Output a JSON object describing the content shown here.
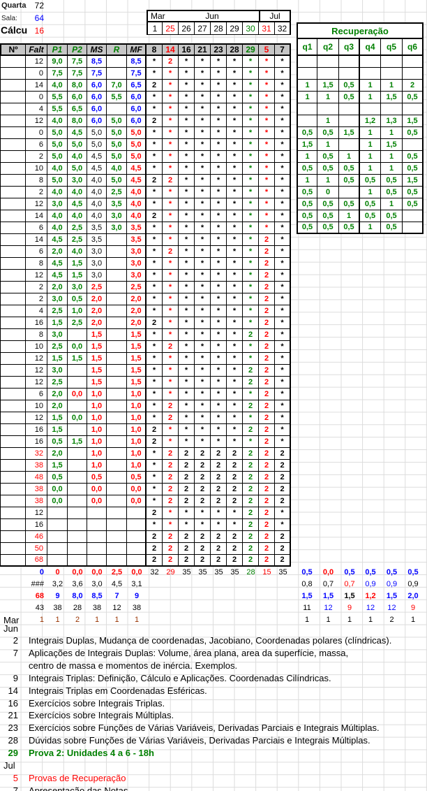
{
  "topbar": {
    "day_label": "Quarta",
    "day_value": "72",
    "room_label": "Sala:",
    "room_value": "64",
    "course_label": "Cálcu",
    "course_value": "16"
  },
  "calendar": {
    "months": [
      "Mar",
      "Jun",
      "Jul"
    ],
    "weeks": [
      "1",
      "25",
      "26",
      "27",
      "28",
      "29",
      "30",
      "31",
      "32"
    ],
    "week_colors": [
      "k",
      "r",
      "k",
      "k",
      "k",
      "k",
      "g",
      "r",
      "k"
    ]
  },
  "header": {
    "left": [
      "Nº",
      "Falt",
      "P1",
      "P2",
      "MS",
      "R",
      "MF"
    ],
    "left_colors": [
      "k",
      "k",
      "g",
      "g",
      "k",
      "g",
      "k"
    ],
    "dates": [
      "8",
      "14",
      "16",
      "21",
      "23",
      "28",
      "29",
      "5",
      "7"
    ],
    "date_colors": [
      "k",
      "r",
      "k",
      "k",
      "k",
      "k",
      "g",
      "r",
      "k"
    ]
  },
  "recup": {
    "title": "Recuperação",
    "cols": [
      "q1",
      "q2",
      "q3",
      "q4",
      "q5",
      "q6"
    ]
  },
  "rows": [
    {
      "g": [
        "12",
        "9,0",
        "7,5",
        "8,5",
        "",
        "8,5"
      ],
      "gc": [
        "k",
        "g",
        "g",
        "b",
        "g",
        "b"
      ],
      "d": "*2*******",
      "q": [
        "",
        "",
        "",
        "",
        "",
        ""
      ]
    },
    {
      "g": [
        "0",
        "7,5",
        "7,5",
        "7,5",
        "",
        "7,5"
      ],
      "gc": [
        "k",
        "g",
        "g",
        "b",
        "g",
        "b"
      ],
      "d": "*********",
      "q": [
        "",
        "",
        "",
        "",
        "",
        ""
      ]
    },
    {
      "g": [
        "14",
        "4,0",
        "8,0",
        "6,0",
        "7,0",
        "6,5"
      ],
      "gc": [
        "k",
        "g",
        "g",
        "b",
        "g",
        "b"
      ],
      "d": "2********",
      "q": [
        "1",
        "1,5",
        "0,5",
        "1",
        "1",
        "2"
      ]
    },
    {
      "g": [
        "0",
        "5,5",
        "6,0",
        "6,0",
        "5,5",
        "6,0"
      ],
      "gc": [
        "k",
        "g",
        "g",
        "b",
        "g",
        "b"
      ],
      "d": "*********",
      "q": [
        "1",
        "1",
        "0,5",
        "1",
        "1,5",
        "0,5"
      ]
    },
    {
      "g": [
        "4",
        "5,5",
        "6,5",
        "6,0",
        "",
        "6,0"
      ],
      "gc": [
        "k",
        "g",
        "g",
        "b",
        "g",
        "b"
      ],
      "d": "*********",
      "q": [
        "",
        "",
        "",
        "",
        "",
        ""
      ]
    },
    {
      "g": [
        "12",
        "4,0",
        "8,0",
        "6,0",
        "5,0",
        "6,0"
      ],
      "gc": [
        "k",
        "g",
        "g",
        "b",
        "g",
        "b"
      ],
      "d": "2********",
      "q": [
        "",
        "1",
        "",
        "1,2",
        "1,3",
        "1,5"
      ]
    },
    {
      "g": [
        "0",
        "5,0",
        "4,5",
        "5,0",
        "5,0",
        "5,0"
      ],
      "gc": [
        "k",
        "g",
        "g",
        "k",
        "g",
        "r"
      ],
      "d": "*********",
      "q": [
        "0,5",
        "0,5",
        "1,5",
        "1",
        "1",
        "0,5"
      ]
    },
    {
      "g": [
        "6",
        "5,0",
        "5,0",
        "5,0",
        "5,0",
        "5,0"
      ],
      "gc": [
        "k",
        "g",
        "g",
        "k",
        "g",
        "r"
      ],
      "d": "*********",
      "q": [
        "1,5",
        "1",
        "",
        "1",
        "1,5",
        ""
      ]
    },
    {
      "g": [
        "2",
        "5,0",
        "4,0",
        "4,5",
        "5,0",
        "5,0"
      ],
      "gc": [
        "k",
        "g",
        "g",
        "k",
        "g",
        "r"
      ],
      "d": "*********",
      "q": [
        "1",
        "0,5",
        "1",
        "1",
        "1",
        "0,5"
      ]
    },
    {
      "g": [
        "10",
        "4,0",
        "5,0",
        "4,5",
        "4,0",
        "4,5"
      ],
      "gc": [
        "k",
        "g",
        "g",
        "k",
        "g",
        "r"
      ],
      "d": "*********",
      "q": [
        "0,5",
        "0,5",
        "0,5",
        "1",
        "1",
        "0,5"
      ]
    },
    {
      "g": [
        "8",
        "5,0",
        "3,0",
        "4,0",
        "5,0",
        "4,5"
      ],
      "gc": [
        "k",
        "g",
        "g",
        "k",
        "g",
        "r"
      ],
      "d": "22*******",
      "q": [
        "1",
        "1",
        "0,5",
        "0,5",
        "0,5",
        "1,5"
      ]
    },
    {
      "g": [
        "2",
        "4,0",
        "4,0",
        "4,0",
        "2,5",
        "4,0"
      ],
      "gc": [
        "k",
        "g",
        "g",
        "k",
        "g",
        "r"
      ],
      "d": "*********",
      "q": [
        "0,5",
        "0",
        "",
        "1",
        "0,5",
        "0,5"
      ]
    },
    {
      "g": [
        "12",
        "3,0",
        "4,5",
        "4,0",
        "3,5",
        "4,0"
      ],
      "gc": [
        "k",
        "g",
        "g",
        "k",
        "g",
        "r"
      ],
      "d": "*********",
      "q": [
        "0,5",
        "0,5",
        "0,5",
        "0,5",
        "1",
        "0,5"
      ]
    },
    {
      "g": [
        "14",
        "4,0",
        "4,0",
        "4,0",
        "3,0",
        "4,0"
      ],
      "gc": [
        "k",
        "g",
        "g",
        "k",
        "g",
        "r"
      ],
      "d": "2********",
      "q": [
        "0,5",
        "0,5",
        "1",
        "0,5",
        "0,5",
        ""
      ]
    },
    {
      "g": [
        "6",
        "4,0",
        "2,5",
        "3,5",
        "3,0",
        "3,5"
      ],
      "gc": [
        "k",
        "g",
        "g",
        "k",
        "g",
        "r"
      ],
      "d": "*********",
      "q": [
        "0,5",
        "0,5",
        "0,5",
        "1",
        "0,5",
        ""
      ]
    },
    {
      "g": [
        "14",
        "4,5",
        "2,5",
        "3,5",
        "",
        "3,5"
      ],
      "gc": [
        "k",
        "g",
        "g",
        "k",
        "g",
        "r"
      ],
      "d": "*******2*"
    },
    {
      "g": [
        "6",
        "2,0",
        "4,0",
        "3,0",
        "",
        "3,0"
      ],
      "gc": [
        "k",
        "g",
        "g",
        "k",
        "g",
        "r"
      ],
      "d": "*2*****2*"
    },
    {
      "g": [
        "8",
        "4,5",
        "1,5",
        "3,0",
        "",
        "3,0"
      ],
      "gc": [
        "k",
        "g",
        "g",
        "k",
        "g",
        "r"
      ],
      "d": "*******2*"
    },
    {
      "g": [
        "12",
        "4,5",
        "1,5",
        "3,0",
        "",
        "3,0"
      ],
      "gc": [
        "k",
        "g",
        "g",
        "k",
        "g",
        "r"
      ],
      "d": "*******2*"
    },
    {
      "g": [
        "2",
        "2,0",
        "3,0",
        "2,5",
        "",
        "2,5"
      ],
      "gc": [
        "k",
        "g",
        "g",
        "r",
        "g",
        "r"
      ],
      "d": "*******2*"
    },
    {
      "g": [
        "2",
        "3,0",
        "0,5",
        "2,0",
        "",
        "2,0"
      ],
      "gc": [
        "k",
        "g",
        "g",
        "r",
        "g",
        "r"
      ],
      "d": "*******2*"
    },
    {
      "g": [
        "4",
        "2,5",
        "1,0",
        "2,0",
        "",
        "2,0"
      ],
      "gc": [
        "k",
        "g",
        "g",
        "r",
        "g",
        "r"
      ],
      "d": "*******2*"
    },
    {
      "g": [
        "16",
        "1,5",
        "2,5",
        "2,0",
        "",
        "2,0"
      ],
      "gc": [
        "k",
        "g",
        "g",
        "r",
        "g",
        "r"
      ],
      "d": "2******2*"
    },
    {
      "g": [
        "8",
        "3,0",
        "",
        "1,5",
        "",
        "1,5"
      ],
      "gc": [
        "k",
        "g",
        "g",
        "r",
        "g",
        "r"
      ],
      "d": "******22*"
    },
    {
      "g": [
        "10",
        "2,5",
        "0,0",
        "1,5",
        "",
        "1,5"
      ],
      "gc": [
        "k",
        "g",
        "g",
        "r",
        "g",
        "r"
      ],
      "d": "*2*****2*"
    },
    {
      "g": [
        "12",
        "1,5",
        "1,5",
        "1,5",
        "",
        "1,5"
      ],
      "gc": [
        "k",
        "g",
        "g",
        "r",
        "g",
        "r"
      ],
      "d": "*******2*"
    },
    {
      "g": [
        "12",
        "3,0",
        "",
        "1,5",
        "",
        "1,5"
      ],
      "gc": [
        "k",
        "g",
        "g",
        "r",
        "g",
        "r"
      ],
      "d": "******22*"
    },
    {
      "g": [
        "12",
        "2,5",
        "",
        "1,5",
        "",
        "1,5"
      ],
      "gc": [
        "k",
        "g",
        "g",
        "r",
        "g",
        "r"
      ],
      "d": "******22*"
    },
    {
      "g": [
        "6",
        "2,0",
        "0,0",
        "1,0",
        "",
        "1,0"
      ],
      "gc": [
        "k",
        "g",
        "r",
        "r",
        "g",
        "r"
      ],
      "d": "*******2*"
    },
    {
      "g": [
        "10",
        "2,0",
        "",
        "1,0",
        "",
        "1,0"
      ],
      "gc": [
        "k",
        "g",
        "g",
        "r",
        "g",
        "r"
      ],
      "d": "*2****22*"
    },
    {
      "g": [
        "12",
        "1,5",
        "0,0",
        "1,0",
        "",
        "1,0"
      ],
      "gc": [
        "k",
        "g",
        "g",
        "r",
        "g",
        "r"
      ],
      "d": "*2*****2*"
    },
    {
      "g": [
        "16",
        "1,5",
        "",
        "1,0",
        "",
        "1,0"
      ],
      "gc": [
        "k",
        "g",
        "g",
        "r",
        "g",
        "r"
      ],
      "d": "2*****22*"
    },
    {
      "g": [
        "16",
        "0,5",
        "1,5",
        "1,0",
        "",
        "1,0"
      ],
      "gc": [
        "k",
        "g",
        "g",
        "r",
        "g",
        "r"
      ],
      "d": "2******2*"
    },
    {
      "g": [
        "32",
        "2,0",
        "",
        "1,0",
        "",
        "1,0"
      ],
      "gc": [
        "r",
        "g",
        "g",
        "r",
        "g",
        "r"
      ],
      "d": "*22222222"
    },
    {
      "g": [
        "38",
        "1,5",
        "",
        "1,0",
        "",
        "1,0"
      ],
      "gc": [
        "r",
        "g",
        "g",
        "r",
        "g",
        "r"
      ],
      "d": "*22222222"
    },
    {
      "g": [
        "48",
        "0,5",
        "",
        "0,5",
        "",
        "0,5"
      ],
      "gc": [
        "r",
        "g",
        "g",
        "r",
        "g",
        "r"
      ],
      "d": "*22222222"
    },
    {
      "g": [
        "38",
        "0,0",
        "",
        "0,0",
        "",
        "0,0"
      ],
      "gc": [
        "r",
        "g",
        "g",
        "r",
        "g",
        "r"
      ],
      "d": "*22222222"
    },
    {
      "g": [
        "38",
        "0,0",
        "",
        "0,0",
        "",
        "0,0"
      ],
      "gc": [
        "r",
        "g",
        "g",
        "r",
        "g",
        "r"
      ],
      "d": "*22222222"
    },
    {
      "g": [
        "12",
        "",
        "",
        "",
        "",
        ""
      ],
      "gc": [
        "k",
        "g",
        "g",
        "r",
        "g",
        "r"
      ],
      "d": "2*****22*"
    },
    {
      "g": [
        "16",
        "",
        "",
        "",
        "",
        ""
      ],
      "gc": [
        "k",
        "g",
        "g",
        "r",
        "g",
        "r"
      ],
      "d": "******22*"
    },
    {
      "g": [
        "46",
        "",
        "",
        "",
        "",
        ""
      ],
      "gc": [
        "r",
        "g",
        "g",
        "r",
        "g",
        "r"
      ],
      "d": "222222222"
    },
    {
      "g": [
        "50",
        "",
        "",
        "",
        "",
        ""
      ],
      "gc": [
        "r",
        "g",
        "g",
        "r",
        "g",
        "r"
      ],
      "d": "222222222"
    },
    {
      "g": [
        "68",
        "",
        "",
        "",
        "",
        ""
      ],
      "gc": [
        "r",
        "g",
        "g",
        "r",
        "g",
        "r"
      ],
      "d": "222222222"
    }
  ],
  "summary": [
    {
      "label": "",
      "left": [
        "0",
        "0",
        "0,0",
        "0,0",
        "2,5",
        "0,0"
      ],
      "lc": [
        "b",
        "r",
        "r",
        "r",
        "r",
        "r"
      ],
      "dates": [
        "32",
        "29",
        "35",
        "35",
        "35",
        "35",
        "28",
        "15",
        "35"
      ],
      "q": [
        "0,5",
        "0,0",
        "0,5",
        "0,5",
        "0,5",
        "0,5"
      ],
      "qc": [
        "b",
        "r",
        "b",
        "b",
        "b",
        "b"
      ],
      "bold": true
    },
    {
      "label": "",
      "left": [
        "###",
        "3,2",
        "3,6",
        "3,0",
        "4,5",
        "3,1"
      ],
      "lc": [
        "k",
        "k",
        "k",
        "k",
        "k",
        "k"
      ],
      "dates": [],
      "q": [
        "0,8",
        "0,7",
        "0,7",
        "0,9",
        "0,9",
        "0,9"
      ],
      "qc": [
        "k",
        "k",
        "r",
        "b",
        "b",
        "k"
      ],
      "bold": false
    },
    {
      "label": "",
      "left": [
        "68",
        "9",
        "8,0",
        "8,5",
        "7",
        "9"
      ],
      "lc": [
        "r",
        "b",
        "b",
        "b",
        "b",
        "b"
      ],
      "dates": [],
      "q": [
        "1,5",
        "1,5",
        "1,5",
        "1,2",
        "1,5",
        "2,0"
      ],
      "qc": [
        "b",
        "b",
        "k",
        "r",
        "b",
        "b"
      ],
      "bold": true
    },
    {
      "label": "",
      "left": [
        "43",
        "38",
        "28",
        "38",
        "12",
        "38"
      ],
      "lc": [
        "k",
        "k",
        "k",
        "k",
        "k",
        "k"
      ],
      "dates": [],
      "q": [
        "11",
        "12",
        "9",
        "12",
        "12",
        "9"
      ],
      "qc": [
        "k",
        "b",
        "r",
        "b",
        "b",
        "r"
      ],
      "bold": false
    },
    {
      "label": "Mar",
      "left": [
        "1",
        "1",
        "2",
        "1",
        "1",
        "1"
      ],
      "lc": [
        "x",
        "x",
        "x",
        "x",
        "x",
        "x"
      ],
      "dates": [],
      "q": [
        "1",
        "1",
        "1",
        "1",
        "2",
        "1"
      ],
      "qc": [
        "k",
        "k",
        "k",
        "k",
        "k",
        "k"
      ],
      "bold": false
    }
  ],
  "footer": {
    "jun": "Jun",
    "topics": [
      {
        "n": "2",
        "c": "k",
        "text": "Integrais Duplas, Mudança de coordenadas, Jacobiano, Coordenadas polares (clíndricas)."
      },
      {
        "n": "7",
        "c": "k",
        "text": "Aplicações de Integrais Duplas: Volume, área plana, area da superfície, massa,"
      },
      {
        "n": "",
        "c": "k",
        "text": "centro de massa e momentos de inércia. Exemplos."
      },
      {
        "n": "9",
        "c": "k",
        "text": "Integrais Triplas: Definição, Cálculo e Aplicações. Coordenadas Cilíndricas."
      },
      {
        "n": "14",
        "c": "k",
        "text": "Integrais Triplas em Coordenadas Esféricas."
      },
      {
        "n": "16",
        "c": "k",
        "text": "Exercícios sobre Integrais Triplas."
      },
      {
        "n": "21",
        "c": "k",
        "text": "Exercícios sobre Integrais Múltiplas."
      },
      {
        "n": "23",
        "c": "k",
        "text": "Exercícios sobre Funções de Várias Variáveis, Derivadas Parciais e Integrais Múltiplas."
      },
      {
        "n": "28",
        "c": "k",
        "text": "Dúvidas sobre Funções de Várias Variáveis, Derivadas Parciais e Integrais Múltiplas."
      },
      {
        "n": "29",
        "c": "g",
        "bold": true,
        "text": "Prova 2: Unidades 4 a 6 - 18h"
      },
      {
        "month": "Jul"
      },
      {
        "n": "5",
        "c": "r",
        "text": "Provas de Recuperação"
      },
      {
        "n": "7",
        "c": "k",
        "text": "Apresentação das Notas."
      }
    ]
  },
  "colors": {
    "green": "#008000",
    "red": "#FF0000",
    "blue": "#0000FF",
    "dark_red": "#993300",
    "header_bg": "#C6C6C6",
    "gridline": "#DCDCDC",
    "border": "#000000"
  }
}
